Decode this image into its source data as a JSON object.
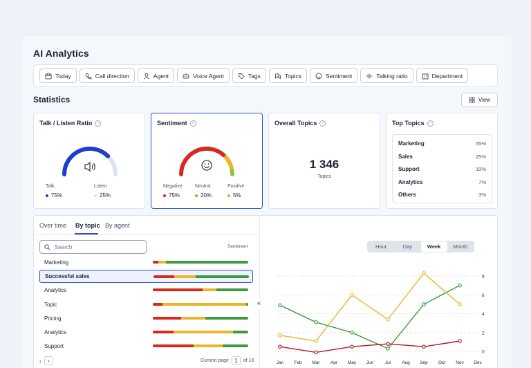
{
  "page": {
    "title": "AI Analytics"
  },
  "filters": [
    {
      "label": "Today",
      "icon": "calendar-icon"
    },
    {
      "label": "Call direction",
      "icon": "phone-icon"
    },
    {
      "label": "Agent",
      "icon": "user-icon"
    },
    {
      "label": "Voice Agent",
      "icon": "voice-agent-icon"
    },
    {
      "label": "Tags",
      "icon": "tag-icon"
    },
    {
      "label": "Topics",
      "icon": "topics-icon"
    },
    {
      "label": "Sentiment",
      "icon": "smile-icon"
    },
    {
      "label": "Talking ratio",
      "icon": "waveform-icon"
    },
    {
      "label": "Department",
      "icon": "department-icon"
    }
  ],
  "statistics": {
    "title": "Statistics",
    "view_label": "View",
    "talk_listen": {
      "title": "Talk / Listen Ratio",
      "talk_label": "Talk",
      "talk_value": "75%",
      "listen_label": "Listen",
      "listen_value": "25%",
      "talk_fraction": 0.75
    },
    "sentiment": {
      "title": "Sentiment",
      "negative_label": "Negative",
      "negative_value": "75%",
      "neutral_label": "Neutral",
      "neutral_value": "20%",
      "positive_label": "Positive",
      "positive_value": "5%"
    },
    "overall_topics": {
      "title": "Overall Topics",
      "value": "1 346",
      "unit": "Topics"
    },
    "top_topics": {
      "title": "Top Topics",
      "items": [
        {
          "name": "Marketing",
          "pct": "55%"
        },
        {
          "name": "Sales",
          "pct": "25%"
        },
        {
          "name": "Support",
          "pct": "10%"
        },
        {
          "name": "Analytics",
          "pct": "7%"
        },
        {
          "name": "Others",
          "pct": "3%"
        }
      ]
    }
  },
  "colors": {
    "negative": "#d42b1e",
    "neutral": "#f0b429",
    "positive": "#3c9a3c",
    "talk": "#1c3fc9",
    "listen": "#dde2f2",
    "accent": "#2f4fc9"
  },
  "breakdown": {
    "tabs": [
      "Over time",
      "By topic",
      "By agent"
    ],
    "active_tab": "By topic",
    "search_placeholder": "Search",
    "sentiment_header": "Sentiment",
    "rows": [
      {
        "label": "Marketing",
        "neg": 0.06,
        "neu": 0.08,
        "pos": 0.86
      },
      {
        "label": "Successful sales",
        "neg": 0.22,
        "neu": 0.22,
        "pos": 0.56,
        "selected": true
      },
      {
        "label": "Analytics",
        "neg": 0.52,
        "neu": 0.15,
        "pos": 0.33
      },
      {
        "label": "Topic",
        "neg": 0.1,
        "neu": 0.88,
        "pos": 0.02
      },
      {
        "label": "Pricing",
        "neg": 0.3,
        "neu": 0.25,
        "pos": 0.45
      },
      {
        "label": "Analytics",
        "neg": 0.22,
        "neu": 0.62,
        "pos": 0.16
      },
      {
        "label": "Support",
        "neg": 0.43,
        "neu": 0.3,
        "pos": 0.27
      }
    ],
    "pager": {
      "label": "Current page",
      "page": "1",
      "of": "of 10"
    },
    "granularity": [
      "Hour",
      "Day",
      "Week",
      "Month"
    ],
    "active_granularity": "Week"
  },
  "chart_data": {
    "type": "line",
    "x": [
      "Jan",
      "Feb",
      "Mar",
      "Apr",
      "May",
      "Jun",
      "Jul",
      "Aug",
      "Sep",
      "Oct",
      "Nov",
      "Dec"
    ],
    "y_ticks": [
      0,
      2,
      4,
      6,
      8
    ],
    "ylim": [
      0,
      9
    ],
    "series": [
      {
        "color": "#3c9a3c",
        "points": [
          [
            0,
            4.9
          ],
          [
            2,
            3.1
          ],
          [
            4,
            2.0
          ],
          [
            6,
            0.3
          ],
          [
            8,
            5.0
          ],
          [
            10,
            7.0
          ]
        ]
      },
      {
        "color": "#f0b429",
        "points": [
          [
            0,
            1.7
          ],
          [
            2,
            1.1
          ],
          [
            4,
            6.0
          ],
          [
            6,
            3.4
          ],
          [
            8,
            8.3
          ],
          [
            10,
            5.0
          ]
        ]
      },
      {
        "color": "#b0161e",
        "points": [
          [
            0,
            0.5
          ],
          [
            2,
            -0.1
          ],
          [
            4,
            0.5
          ],
          [
            6,
            0.8
          ],
          [
            8,
            0.5
          ],
          [
            10,
            1.1
          ]
        ]
      }
    ],
    "grid": true
  }
}
